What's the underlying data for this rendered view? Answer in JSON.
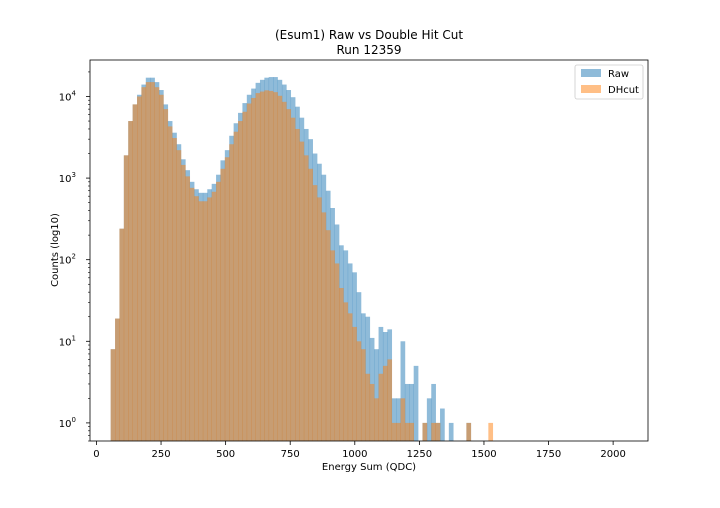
{
  "chart_data": {
    "type": "bar",
    "subtype": "histogram",
    "title": "(Esum1) Raw vs Double Hit Cut",
    "subtitle": "Run 12359",
    "xlabel": "Energy Sum (QDC)",
    "ylabel": "Counts (log10)",
    "yscale": "log",
    "xlim": [
      -25,
      2135
    ],
    "ylim": [
      0.6,
      28000
    ],
    "bin_width": 17,
    "x_start": 55,
    "x_ticks": [
      0,
      250,
      500,
      750,
      1000,
      1250,
      1500,
      1750,
      2000
    ],
    "x_tick_labels": [
      "0",
      "250",
      "500",
      "750",
      "1000",
      "1250",
      "1500",
      "1750",
      "2000"
    ],
    "y_ticks": [
      1,
      10,
      100,
      1000,
      10000
    ],
    "y_tick_labels": [
      "10",
      "10",
      "10",
      "10",
      "10"
    ],
    "y_tick_exponents": [
      "0",
      "1",
      "2",
      "3",
      "4"
    ],
    "grid": false,
    "legend_position": "top-right",
    "series": [
      {
        "name": "Raw",
        "color": "#1f77b4",
        "values": [
          8,
          19,
          240,
          1900,
          5000,
          8000,
          10500,
          14000,
          17000,
          17000,
          15000,
          12000,
          8000,
          5000,
          3600,
          2600,
          1700,
          1250,
          900,
          730,
          660,
          660,
          730,
          850,
          1100,
          1650,
          2200,
          3300,
          4700,
          6300,
          8300,
          10500,
          12500,
          14700,
          16000,
          17000,
          17300,
          17300,
          16000,
          14000,
          12000,
          9800,
          7500,
          5500,
          4000,
          3000,
          2000,
          1500,
          1100,
          700,
          430,
          270,
          150,
          130,
          90,
          70,
          40,
          22,
          20,
          11,
          8,
          15,
          13,
          14,
          2,
          2,
          10,
          3,
          3,
          5,
          0,
          1,
          2,
          3,
          1,
          1.5,
          0,
          1,
          0,
          0,
          0,
          1,
          0,
          0,
          0,
          0,
          0
        ]
      },
      {
        "name": "DHcut",
        "color": "#ff7f0e",
        "values": [
          8,
          19,
          240,
          1900,
          5000,
          8000,
          10000,
          13000,
          15000,
          15000,
          13000,
          10500,
          7000,
          4300,
          3100,
          2200,
          1450,
          1050,
          760,
          600,
          520,
          520,
          580,
          680,
          900,
          1300,
          1800,
          2600,
          3700,
          5000,
          6500,
          8200,
          9600,
          11000,
          11500,
          11900,
          11700,
          11300,
          10200,
          8600,
          7000,
          5500,
          4000,
          2800,
          1900,
          1300,
          820,
          580,
          380,
          230,
          130,
          90,
          45,
          30,
          22,
          15,
          10,
          8,
          4,
          3,
          2,
          4,
          5,
          6,
          1,
          1,
          2,
          1,
          1,
          0,
          0,
          1,
          0,
          1,
          1,
          0,
          0,
          0,
          0,
          0,
          0,
          1,
          0,
          0,
          0,
          0,
          1
        ]
      }
    ]
  }
}
